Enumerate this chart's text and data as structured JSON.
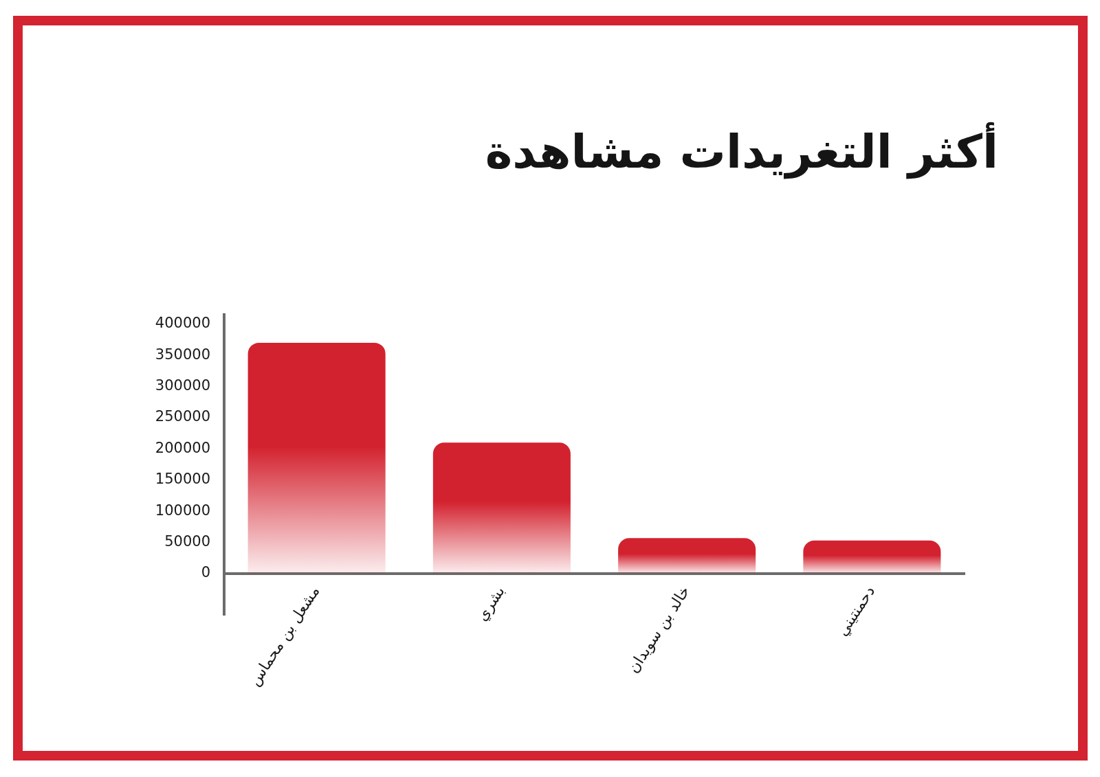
{
  "chart_data": {
    "type": "bar",
    "title": "أكثر التغريدات مشاهدة",
    "categories": [
      "مشعل بن محماس",
      "بشري",
      "خالد بن سويدان",
      "دحمنتيني"
    ],
    "values": [
      370000,
      210000,
      57000,
      53000
    ],
    "color": "#d3222f",
    "ylim": [
      0,
      415000
    ],
    "yticks": [
      0,
      50000,
      100000,
      150000,
      200000,
      250000,
      300000,
      350000,
      400000
    ],
    "grid": false
  }
}
